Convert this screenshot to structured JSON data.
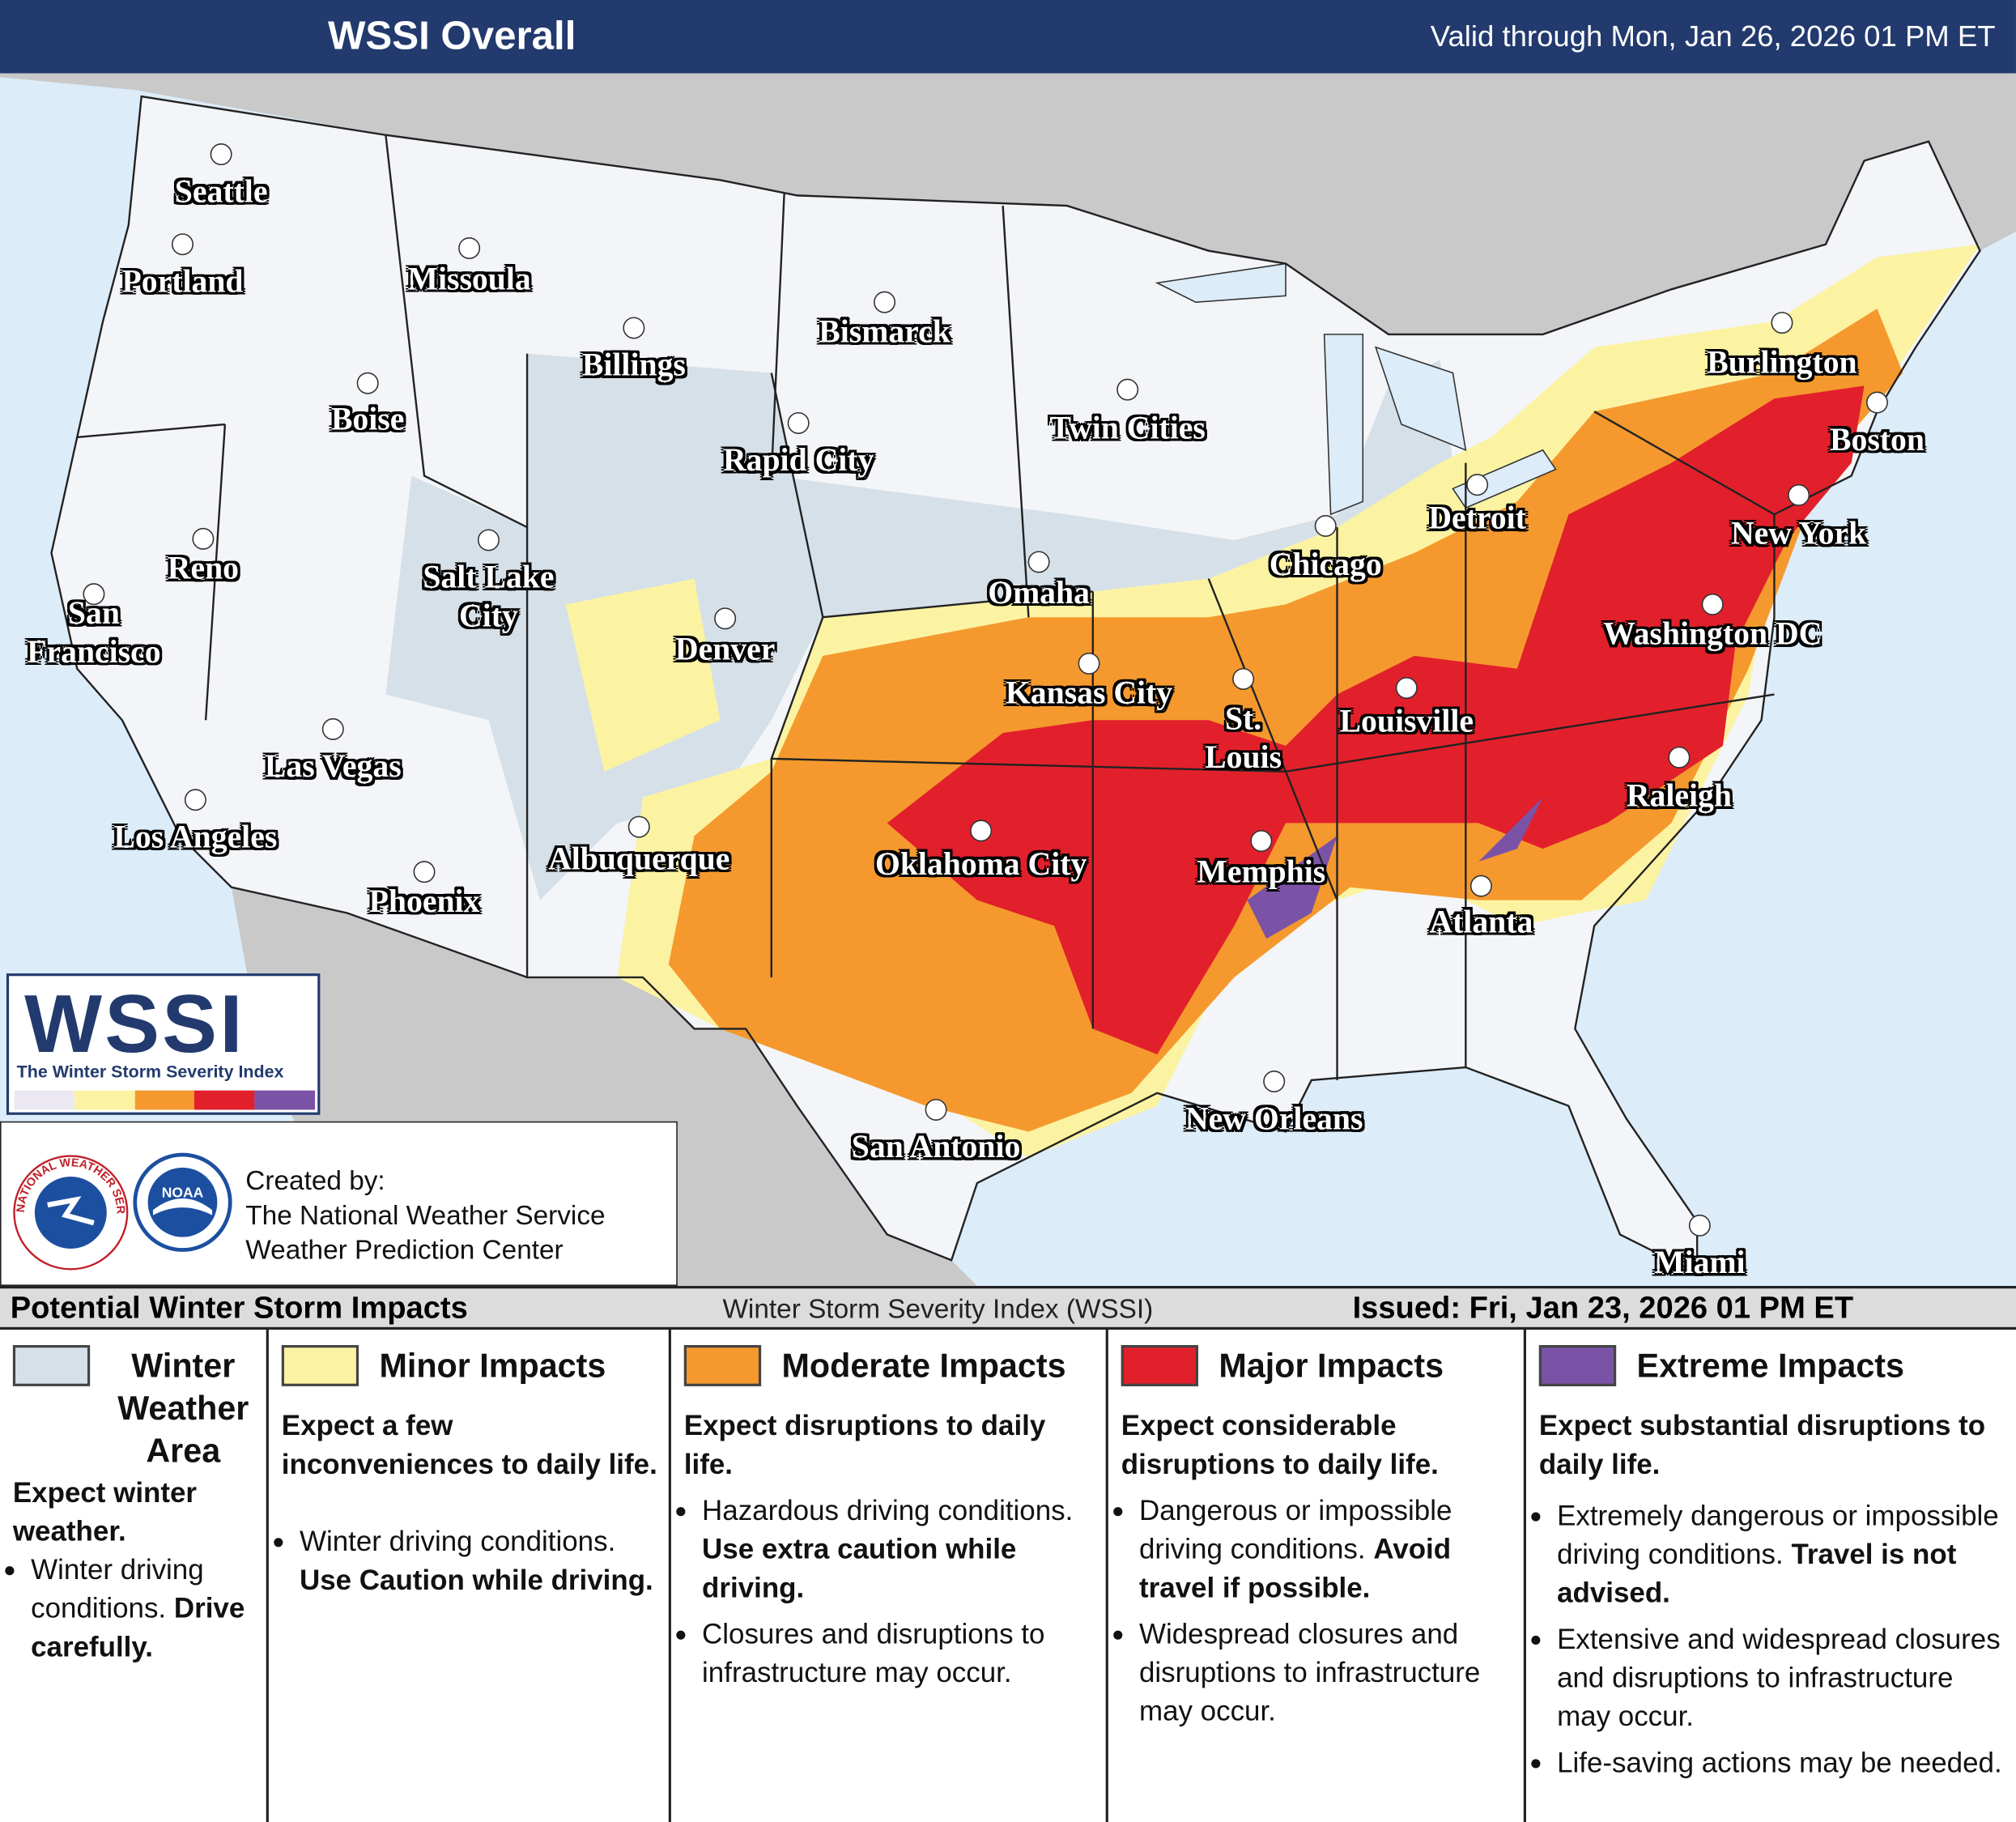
{
  "header": {
    "title": "WSSI Overall",
    "valid": "Valid through Mon, Jan 26, 2026 01 PM ET"
  },
  "cities": [
    "Seattle",
    "Portland",
    "Missoula",
    "Billings",
    "Bismarck",
    "Boise",
    "Twin Cities",
    "Rapid City",
    "Reno",
    "Salt Lake City",
    "San Francisco",
    "Denver",
    "Omaha",
    "Chicago",
    "Detroit",
    "Burlington",
    "Boston",
    "New York",
    "Washington DC",
    "Kansas City",
    "St. Louis",
    "Louisville",
    "Las Vegas",
    "Los Angeles",
    "Oklahoma City",
    "Memphis",
    "Raleigh",
    "Albuquerque",
    "Phoenix",
    "Atlanta",
    "New Orleans",
    "San Antonio",
    "Miami"
  ],
  "logo": {
    "title": "WSSI",
    "subtitle": "The Winter Storm Severity Index"
  },
  "credits": {
    "seal_nws": "NATIONAL WEATHER SERVICE",
    "seal_noaa": "NOAA",
    "lines": [
      "Created by:",
      "The National Weather Service",
      "Weather Prediction Center"
    ]
  },
  "legend": {
    "title": "Potential Winter Storm Impacts",
    "index_name": "Winter Storm Severity Index (WSSI)",
    "issued": "Issued: Fri, Jan 23, 2026 01 PM ET",
    "categories": [
      {
        "name": "Winter Weather Area",
        "color": "#d6e0e8",
        "summary": "Expect winter weather.",
        "bullets": [
          {
            "text": "Winter driving conditions.",
            "bold": "Drive carefully."
          }
        ]
      },
      {
        "name": "Minor Impacts",
        "color": "#fbf3a2",
        "summary": "Expect a few inconveniences to daily life.",
        "bullets": [
          {
            "text": "Winter driving conditions.",
            "bold": "Use Caution while driving."
          }
        ]
      },
      {
        "name": "Moderate Impacts",
        "color": "#f5992e",
        "summary": "Expect disruptions to daily life.",
        "bullets": [
          {
            "text": "Hazardous driving conditions.",
            "bold": "Use extra caution while driving."
          },
          {
            "text": "Closures and disruptions to infrastructure may occur."
          }
        ]
      },
      {
        "name": "Major Impacts",
        "color": "#e2202b",
        "summary": "Expect considerable disruptions to daily life.",
        "bullets": [
          {
            "text": "Dangerous or impossible driving conditions.",
            "bold": "Avoid travel if possible."
          },
          {
            "text": "Widespread closures and disruptions to infrastructure may occur."
          }
        ]
      },
      {
        "name": "Extreme Impacts",
        "color": "#7b53a6",
        "summary": "Expect substantial disruptions to daily life.",
        "bullets": [
          {
            "text": "Extremely dangerous or impossible driving conditions.",
            "bold": "Travel is not advised."
          },
          {
            "text": "Extensive and widespread closures and disruptions to infrastructure may occur."
          },
          {
            "text": "Life-saving actions may be needed."
          }
        ]
      }
    ]
  }
}
